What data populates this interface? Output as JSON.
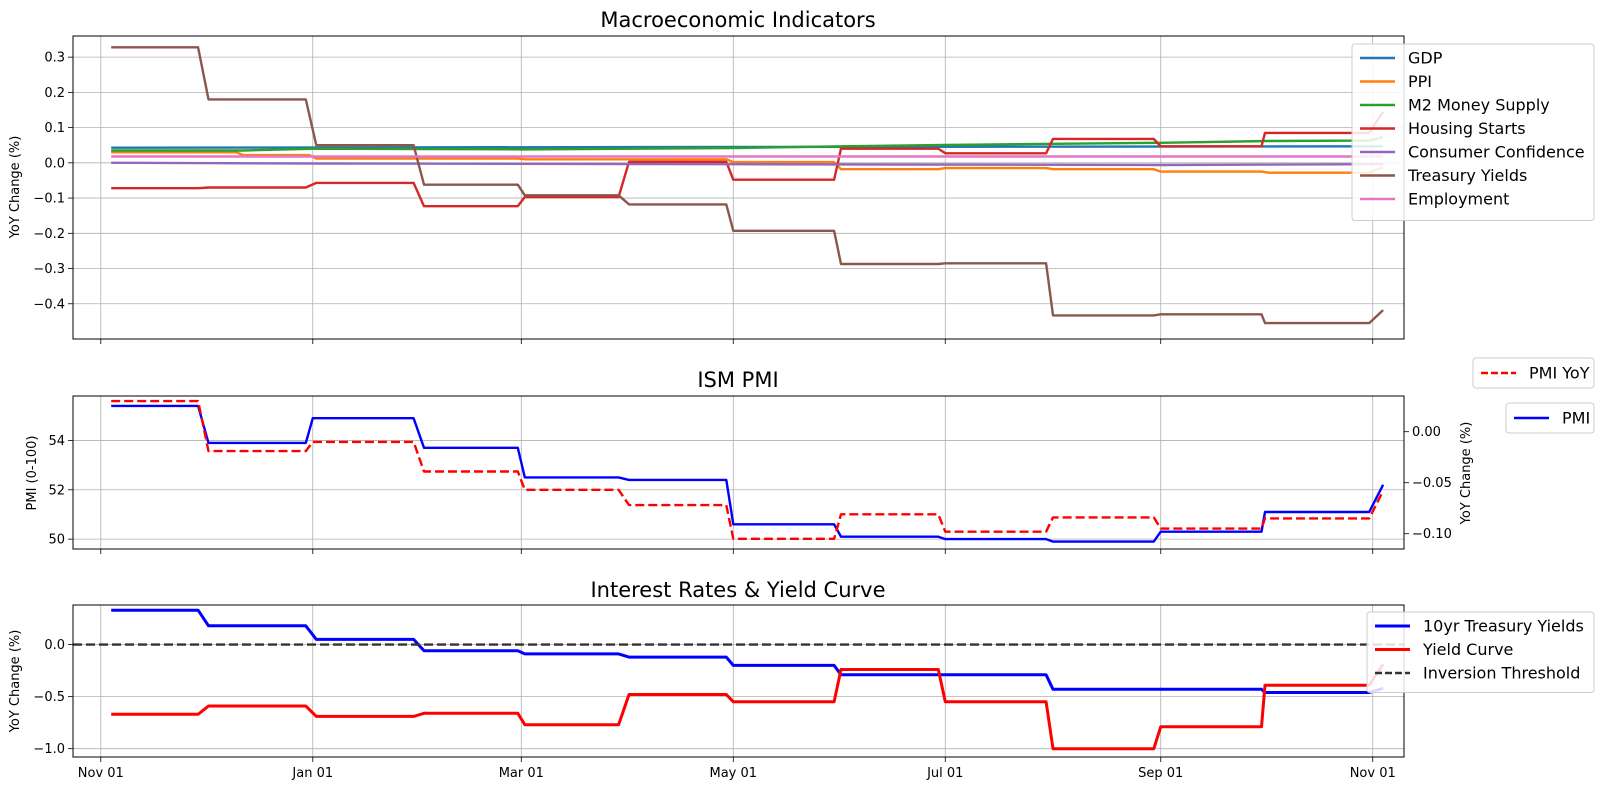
{
  "chart_data": [
    {
      "type": "line",
      "title": "Macroeconomic Indicators",
      "xlabel": "",
      "ylabel": "YoY Change (%)",
      "ylim": [
        -0.5,
        0.36
      ],
      "yticks": [
        0.3,
        0.2,
        0.1,
        0.0,
        -0.1,
        -0.2,
        -0.3,
        -0.4
      ],
      "ytick_labels": [
        "0.3",
        "0.2",
        "0.1",
        "0.0",
        "−0.1",
        "−0.2",
        "−0.3",
        "−0.4"
      ],
      "grid": true,
      "legend_position": "right",
      "series": [
        {
          "name": "GDP",
          "color": "#1f77b4",
          "points": [
            [
              "2023-11-04",
              0.043
            ],
            [
              "2024-11-04",
              0.047
            ]
          ]
        },
        {
          "name": "PPI",
          "color": "#ff7f0e",
          "points": [
            [
              "2023-11-04",
              0.03
            ],
            [
              "2023-12-10",
              0.03
            ],
            [
              "2023-12-12",
              0.022
            ],
            [
              "2023-12-31",
              0.022
            ],
            [
              "2024-01-02",
              0.012
            ],
            [
              "2024-02-29",
              0.012
            ],
            [
              "2024-03-02",
              0.01
            ],
            [
              "2024-04-29",
              0.01
            ],
            [
              "2024-05-01",
              0.002
            ],
            [
              "2024-05-30",
              0.002
            ],
            [
              "2024-06-01",
              -0.018
            ],
            [
              "2024-06-29",
              -0.018
            ],
            [
              "2024-07-01",
              -0.015
            ],
            [
              "2024-07-30",
              -0.015
            ],
            [
              "2024-08-01",
              -0.018
            ],
            [
              "2024-08-30",
              -0.018
            ],
            [
              "2024-09-01",
              -0.025
            ],
            [
              "2024-09-30",
              -0.025
            ],
            [
              "2024-10-02",
              -0.028
            ],
            [
              "2024-10-31",
              -0.028
            ],
            [
              "2024-11-04",
              -0.012
            ]
          ]
        },
        {
          "name": "M2 Money Supply",
          "color": "#2ca02c",
          "points": [
            [
              "2023-11-04",
              0.035
            ],
            [
              "2023-12-12",
              0.035
            ],
            [
              "2024-01-02",
              0.04
            ],
            [
              "2024-03-02",
              0.038
            ],
            [
              "2024-05-01",
              0.042
            ],
            [
              "2024-06-01",
              0.047
            ],
            [
              "2024-07-01",
              0.051
            ],
            [
              "2024-09-01",
              0.057
            ],
            [
              "2024-10-02",
              0.062
            ],
            [
              "2024-10-31",
              0.063
            ],
            [
              "2024-11-04",
              0.073
            ]
          ]
        },
        {
          "name": "Housing Starts",
          "color": "#d62728",
          "points": [
            [
              "2023-11-04",
              -0.072
            ],
            [
              "2023-11-29",
              -0.072
            ],
            [
              "2023-12-02",
              -0.07
            ],
            [
              "2023-12-30",
              -0.07
            ],
            [
              "2024-01-02",
              -0.057
            ],
            [
              "2024-01-30",
              -0.057
            ],
            [
              "2024-02-02",
              -0.123
            ],
            [
              "2024-02-29",
              -0.123
            ],
            [
              "2024-03-02",
              -0.097
            ],
            [
              "2024-03-29",
              -0.097
            ],
            [
              "2024-04-01",
              0.003
            ],
            [
              "2024-04-29",
              0.003
            ],
            [
              "2024-05-01",
              -0.048
            ],
            [
              "2024-05-30",
              -0.048
            ],
            [
              "2024-06-01",
              0.04
            ],
            [
              "2024-06-29",
              0.04
            ],
            [
              "2024-07-01",
              0.027
            ],
            [
              "2024-07-30",
              0.027
            ],
            [
              "2024-08-01",
              0.068
            ],
            [
              "2024-08-30",
              0.068
            ],
            [
              "2024-09-01",
              0.047
            ],
            [
              "2024-09-30",
              0.047
            ],
            [
              "2024-10-01",
              0.085
            ],
            [
              "2024-10-31",
              0.085
            ],
            [
              "2024-11-04",
              0.145
            ]
          ]
        },
        {
          "name": "Consumer Confidence",
          "color": "#9467bd",
          "points": [
            [
              "2023-11-04",
              0.0
            ],
            [
              "2024-01-02",
              -0.002
            ],
            [
              "2024-05-01",
              -0.004
            ],
            [
              "2024-09-01",
              -0.006
            ],
            [
              "2024-11-04",
              -0.004
            ]
          ]
        },
        {
          "name": "Treasury Yields",
          "color": "#8c564b",
          "points": [
            [
              "2023-11-04",
              0.328
            ],
            [
              "2023-11-29",
              0.328
            ],
            [
              "2023-12-02",
              0.18
            ],
            [
              "2023-12-30",
              0.18
            ],
            [
              "2024-01-02",
              0.05
            ],
            [
              "2024-01-30",
              0.05
            ],
            [
              "2024-02-02",
              -0.062
            ],
            [
              "2024-02-29",
              -0.062
            ],
            [
              "2024-03-02",
              -0.092
            ],
            [
              "2024-03-29",
              -0.092
            ],
            [
              "2024-04-01",
              -0.118
            ],
            [
              "2024-04-29",
              -0.118
            ],
            [
              "2024-05-01",
              -0.193
            ],
            [
              "2024-05-30",
              -0.193
            ],
            [
              "2024-06-01",
              -0.287
            ],
            [
              "2024-06-29",
              -0.287
            ],
            [
              "2024-07-01",
              -0.285
            ],
            [
              "2024-07-30",
              -0.285
            ],
            [
              "2024-08-01",
              -0.433
            ],
            [
              "2024-08-30",
              -0.433
            ],
            [
              "2024-09-01",
              -0.43
            ],
            [
              "2024-09-30",
              -0.43
            ],
            [
              "2024-10-01",
              -0.455
            ],
            [
              "2024-10-31",
              -0.455
            ],
            [
              "2024-11-04",
              -0.418
            ]
          ]
        },
        {
          "name": "Employment",
          "color": "#e377c2",
          "points": [
            [
              "2023-11-04",
              0.018
            ],
            [
              "2024-11-04",
              0.018
            ]
          ]
        }
      ]
    },
    {
      "type": "line",
      "title": "ISM PMI",
      "xlabel": "",
      "ylabel": "PMI (0-100)",
      "ylim": [
        49.6,
        55.8
      ],
      "yticks": [
        54,
        52,
        50
      ],
      "ytick_labels": [
        "54",
        "52",
        "50"
      ],
      "y2label": "YoY Change (%)",
      "y2lim": [
        -0.115,
        0.035
      ],
      "y2ticks": [
        0.0,
        -0.05,
        -0.1
      ],
      "y2tick_labels": [
        "0.00",
        "−0.05",
        "−0.10"
      ],
      "grid": true,
      "legend_position": "outside right",
      "series": [
        {
          "name": "PMI",
          "color": "#0000ff",
          "axis": "left",
          "points": [
            [
              "2023-11-04",
              55.4
            ],
            [
              "2023-11-29",
              55.4
            ],
            [
              "2023-12-02",
              53.9
            ],
            [
              "2023-12-30",
              53.9
            ],
            [
              "2024-01-01",
              54.9
            ],
            [
              "2024-01-30",
              54.9
            ],
            [
              "2024-02-02",
              53.7
            ],
            [
              "2024-02-29",
              53.7
            ],
            [
              "2024-03-02",
              52.5
            ],
            [
              "2024-03-29",
              52.5
            ],
            [
              "2024-04-01",
              52.4
            ],
            [
              "2024-04-29",
              52.4
            ],
            [
              "2024-05-01",
              50.6
            ],
            [
              "2024-05-30",
              50.6
            ],
            [
              "2024-06-01",
              50.1
            ],
            [
              "2024-06-29",
              50.1
            ],
            [
              "2024-07-01",
              50.0
            ],
            [
              "2024-07-30",
              50.0
            ],
            [
              "2024-08-01",
              49.9
            ],
            [
              "2024-08-30",
              49.9
            ],
            [
              "2024-09-01",
              50.3
            ],
            [
              "2024-09-30",
              50.3
            ],
            [
              "2024-10-01",
              51.1
            ],
            [
              "2024-10-31",
              51.1
            ],
            [
              "2024-11-04",
              52.2
            ]
          ]
        },
        {
          "name": "PMI YoY",
          "color": "#ff0000",
          "axis": "right",
          "dashed": true,
          "points": [
            [
              "2023-11-04",
              0.03
            ],
            [
              "2023-11-29",
              0.03
            ],
            [
              "2023-12-02",
              -0.019
            ],
            [
              "2023-12-30",
              -0.019
            ],
            [
              "2024-01-01",
              -0.01
            ],
            [
              "2024-01-30",
              -0.01
            ],
            [
              "2024-02-02",
              -0.039
            ],
            [
              "2024-02-29",
              -0.039
            ],
            [
              "2024-03-02",
              -0.057
            ],
            [
              "2024-03-29",
              -0.057
            ],
            [
              "2024-04-01",
              -0.072
            ],
            [
              "2024-04-29",
              -0.072
            ],
            [
              "2024-05-01",
              -0.105
            ],
            [
              "2024-05-30",
              -0.105
            ],
            [
              "2024-06-01",
              -0.081
            ],
            [
              "2024-06-29",
              -0.081
            ],
            [
              "2024-07-01",
              -0.098
            ],
            [
              "2024-07-30",
              -0.098
            ],
            [
              "2024-08-01",
              -0.084
            ],
            [
              "2024-08-30",
              -0.084
            ],
            [
              "2024-09-01",
              -0.095
            ],
            [
              "2024-09-30",
              -0.095
            ],
            [
              "2024-10-01",
              -0.085
            ],
            [
              "2024-10-31",
              -0.085
            ],
            [
              "2024-11-04",
              -0.058
            ]
          ]
        }
      ]
    },
    {
      "type": "line",
      "title": "Interest Rates & Yield Curve",
      "xlabel": "",
      "ylabel": "YoY Change (%)",
      "ylim": [
        -1.08,
        0.38
      ],
      "yticks": [
        0.0,
        -0.5,
        -1.0
      ],
      "ytick_labels": [
        "0.0",
        "−0.5",
        "−1.0"
      ],
      "grid": true,
      "legend_position": "right",
      "series": [
        {
          "name": "10yr Treasury Yields",
          "color": "#0000ff",
          "points": [
            [
              "2023-11-04",
              0.33
            ],
            [
              "2023-11-29",
              0.33
            ],
            [
              "2023-12-02",
              0.18
            ],
            [
              "2023-12-30",
              0.18
            ],
            [
              "2024-01-02",
              0.05
            ],
            [
              "2024-01-30",
              0.05
            ],
            [
              "2024-02-02",
              -0.06
            ],
            [
              "2024-02-29",
              -0.06
            ],
            [
              "2024-03-02",
              -0.09
            ],
            [
              "2024-03-29",
              -0.09
            ],
            [
              "2024-04-01",
              -0.12
            ],
            [
              "2024-04-29",
              -0.12
            ],
            [
              "2024-05-01",
              -0.2
            ],
            [
              "2024-05-30",
              -0.2
            ],
            [
              "2024-06-01",
              -0.29
            ],
            [
              "2024-06-29",
              -0.29
            ],
            [
              "2024-07-01",
              -0.29
            ],
            [
              "2024-07-30",
              -0.29
            ],
            [
              "2024-08-01",
              -0.43
            ],
            [
              "2024-08-30",
              -0.43
            ],
            [
              "2024-09-01",
              -0.43
            ],
            [
              "2024-09-30",
              -0.43
            ],
            [
              "2024-10-01",
              -0.46
            ],
            [
              "2024-10-31",
              -0.46
            ],
            [
              "2024-11-04",
              -0.42
            ]
          ]
        },
        {
          "name": "Yield Curve",
          "color": "#ff0000",
          "points": [
            [
              "2023-11-04",
              -0.67
            ],
            [
              "2023-11-29",
              -0.67
            ],
            [
              "2023-12-02",
              -0.59
            ],
            [
              "2023-12-30",
              -0.59
            ],
            [
              "2024-01-02",
              -0.69
            ],
            [
              "2024-01-30",
              -0.69
            ],
            [
              "2024-02-02",
              -0.66
            ],
            [
              "2024-02-29",
              -0.66
            ],
            [
              "2024-03-02",
              -0.77
            ],
            [
              "2024-03-29",
              -0.77
            ],
            [
              "2024-04-01",
              -0.48
            ],
            [
              "2024-04-29",
              -0.48
            ],
            [
              "2024-05-01",
              -0.55
            ],
            [
              "2024-05-30",
              -0.55
            ],
            [
              "2024-06-01",
              -0.24
            ],
            [
              "2024-06-29",
              -0.24
            ],
            [
              "2024-07-01",
              -0.55
            ],
            [
              "2024-07-30",
              -0.55
            ],
            [
              "2024-08-01",
              -1.0
            ],
            [
              "2024-08-30",
              -1.0
            ],
            [
              "2024-09-01",
              -0.79
            ],
            [
              "2024-09-30",
              -0.79
            ],
            [
              "2024-10-01",
              -0.39
            ],
            [
              "2024-10-31",
              -0.39
            ],
            [
              "2024-11-04",
              -0.19
            ]
          ]
        },
        {
          "name": "Inversion Threshold",
          "color": "#333333",
          "dashed": true,
          "points": [
            [
              "2023-10-24",
              0.0
            ],
            [
              "2024-11-10",
              0.0
            ]
          ]
        }
      ]
    }
  ],
  "shared_x": {
    "xlim": [
      "2023-10-24",
      "2024-11-10"
    ],
    "ticks": [
      {
        "date": "2023-11-01",
        "label": "Nov 01"
      },
      {
        "date": "2024-01-01",
        "label": "Jan 01"
      },
      {
        "date": "2024-03-01",
        "label": "Mar 01"
      },
      {
        "date": "2024-05-01",
        "label": "May 01"
      },
      {
        "date": "2024-07-01",
        "label": "Jul 01"
      },
      {
        "date": "2024-09-01",
        "label": "Sep 01"
      },
      {
        "date": "2024-11-01",
        "label": "Nov 01"
      }
    ]
  }
}
